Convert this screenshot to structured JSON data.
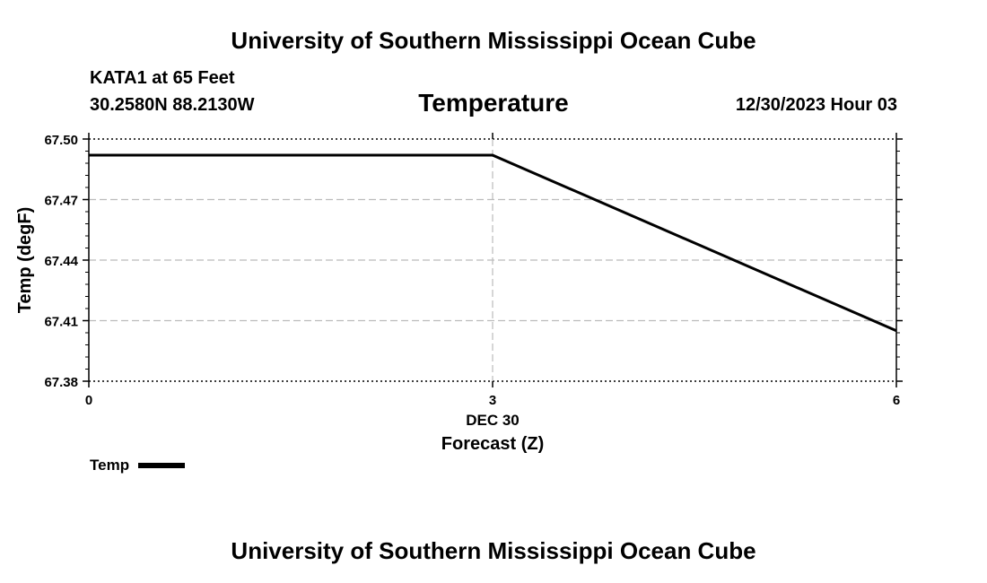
{
  "header": {
    "title": "University of Southern Mississippi Ocean Cube",
    "station": "KATA1 at 65 Feet",
    "coordinates": "30.2580N  88.2130W",
    "chart_title": "Temperature",
    "datetime": "12/30/2023 Hour 03"
  },
  "footer": {
    "title": "University of Southern Mississippi Ocean Cube"
  },
  "legend": {
    "label": "Temp"
  },
  "chart_data": {
    "type": "line",
    "title": "Temperature",
    "xlabel": "Forecast (Z)",
    "x_sublabel": "DEC 30",
    "ylabel": "Temp (degF)",
    "x_ticks": [
      "0",
      "3",
      "6"
    ],
    "y_ticks": [
      "67.38",
      "67.41",
      "67.44",
      "67.47",
      "67.50"
    ],
    "xlim": [
      0,
      6
    ],
    "ylim": [
      67.38,
      67.5
    ],
    "grid": true,
    "legend_position": "bottom-left",
    "series": [
      {
        "name": "Temp",
        "color": "#000000",
        "x": [
          0,
          3,
          6
        ],
        "y": [
          67.492,
          67.492,
          67.405
        ]
      }
    ]
  }
}
